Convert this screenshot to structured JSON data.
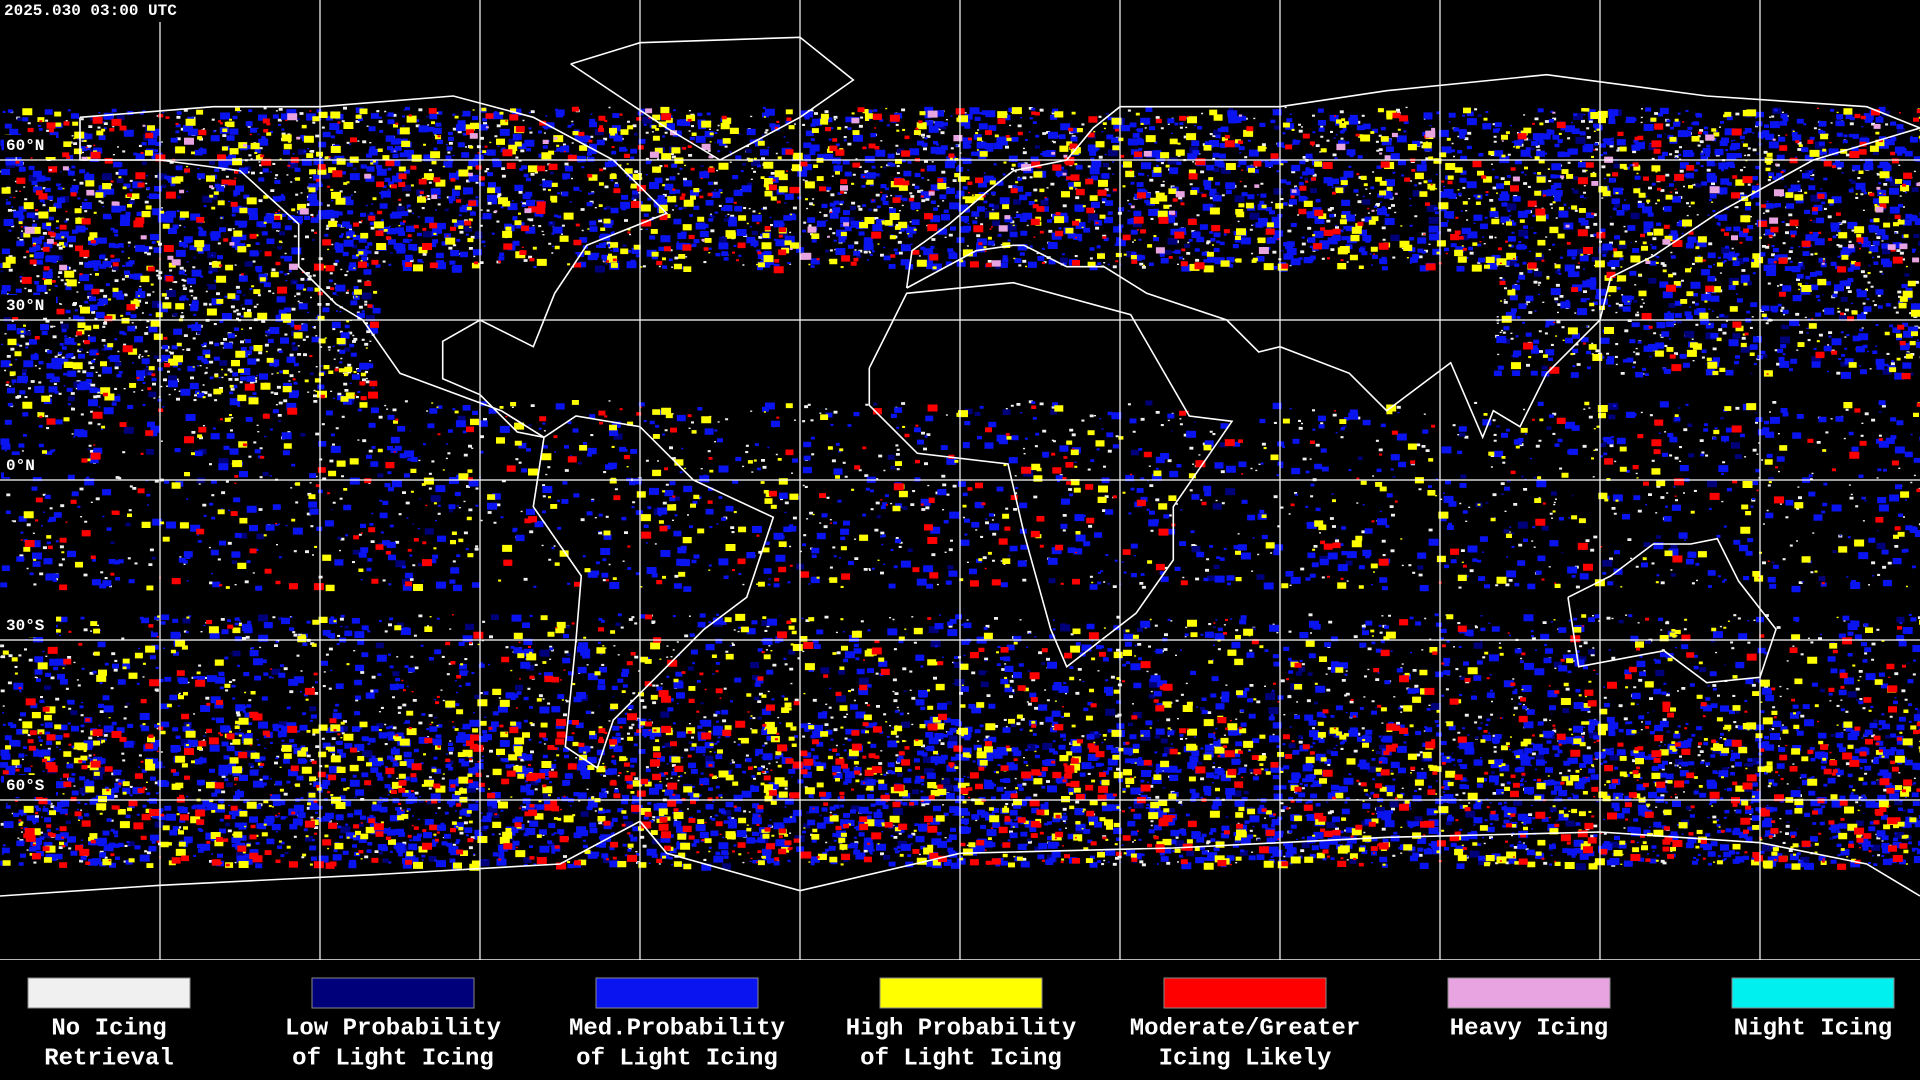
{
  "header": {
    "timestamp": "2025.030 03:00 UTC"
  },
  "map": {
    "latitude_labels": [
      "60°N",
      "30°N",
      "0°N",
      "30°S",
      "60°S"
    ]
  },
  "legend": [
    {
      "lines": [
        "No Icing",
        "Retrieval"
      ],
      "color": "#f0f0f0"
    },
    {
      "lines": [
        "Low Probability",
        "of Light Icing"
      ],
      "color": "#00007a"
    },
    {
      "lines": [
        "Med.Probability",
        "of Light Icing"
      ],
      "color": "#0a14f0"
    },
    {
      "lines": [
        "High Probability",
        "of Light Icing"
      ],
      "color": "#ffff00"
    },
    {
      "lines": [
        "Moderate/Greater",
        "Icing Likely"
      ],
      "color": "#ff0000"
    },
    {
      "lines": [
        "Heavy Icing"
      ],
      "color": "#e8a4e0"
    },
    {
      "lines": [
        "Night Icing"
      ],
      "color": "#00f0f0"
    }
  ]
}
